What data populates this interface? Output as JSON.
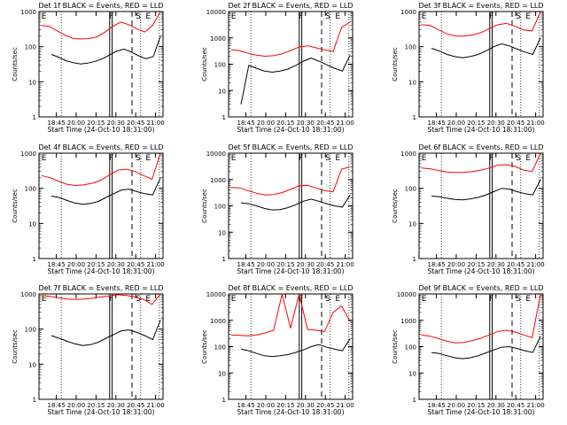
{
  "chart_data": {
    "type": "line",
    "layout": "3x3 grid",
    "shared_xlabel": "Start Time (24-Oct-10 18:31:00)",
    "ylabel": "Counts/sec",
    "x_tick_labels": [
      "18:45",
      "20:00",
      "20:15",
      "20:30",
      "20:45",
      "21:00"
    ],
    "y_tick_labels": [
      "1",
      "10",
      "100",
      "1000"
    ],
    "y_tick_labels_alt": [
      "1",
      "10",
      "100",
      "1000",
      "10000"
    ],
    "y_scale": "log",
    "markers": [
      "E",
      "F",
      "S",
      "E"
    ],
    "colors": {
      "events": "#000000",
      "lld": "#ff0000"
    },
    "panels": [
      {
        "title": "Det 1f BLACK = Events, RED = LLD",
        "ylim": [
          1,
          1000
        ],
        "series": [
          {
            "name": "Events",
            "values": [
              60,
              50,
              40,
              35,
              32,
              34,
              38,
              45,
              58,
              75,
              85,
              70,
              55,
              45,
              52,
              200
            ]
          },
          {
            "name": "LLD",
            "values": [
              400,
              380,
              280,
              210,
              170,
              165,
              170,
              190,
              260,
              380,
              500,
              420,
              320,
              260,
              400,
              1000
            ]
          }
        ]
      },
      {
        "title": "Det 2f BLACK = Events, RED = LLD",
        "ylim": [
          1,
          10000
        ],
        "series": [
          {
            "name": "Events",
            "values": [
              3,
              90,
              70,
              55,
              50,
              55,
              65,
              90,
              130,
              170,
              130,
              95,
              70,
              55,
              220
            ]
          },
          {
            "name": "LLD",
            "values": [
              350,
              330,
              260,
              220,
              200,
              210,
              250,
              330,
              450,
              500,
              420,
              350,
              300,
              2500,
              4000
            ]
          }
        ]
      },
      {
        "title": "Det 3f BLACK = Events, RED = LLD",
        "ylim": [
          1,
          1000
        ],
        "series": [
          {
            "name": "Events",
            "values": [
              90,
              75,
              60,
              52,
              48,
              52,
              60,
              75,
              100,
              120,
              105,
              85,
              70,
              60,
              180
            ]
          },
          {
            "name": "LLD",
            "values": [
              420,
              400,
              300,
              230,
              200,
              200,
              215,
              250,
              330,
              420,
              460,
              380,
              300,
              280,
              1000
            ]
          }
        ]
      },
      {
        "title": "Det 4f BLACK = Events, RED = LLD",
        "ylim": [
          1,
          1000
        ],
        "series": [
          {
            "name": "Events",
            "values": [
              60,
              55,
              45,
              38,
              35,
              37,
              42,
              55,
              70,
              90,
              95,
              80,
              70,
              65,
              200
            ]
          },
          {
            "name": "LLD",
            "values": [
              230,
              200,
              160,
              130,
              120,
              125,
              140,
              170,
              240,
              330,
              350,
              300,
              230,
              180,
              1000
            ]
          }
        ]
      },
      {
        "title": "Det 5f BLACK = Events, RED = LLD",
        "ylim": [
          1,
          10000
        ],
        "series": [
          {
            "name": "Events",
            "values": [
              130,
              120,
              100,
              80,
              70,
              72,
              85,
              110,
              150,
              180,
              150,
              120,
              100,
              90,
              260
            ]
          },
          {
            "name": "LLD",
            "values": [
              500,
              480,
              380,
              300,
              260,
              270,
              320,
              420,
              580,
              600,
              480,
              380,
              340,
              2500,
              3000
            ]
          }
        ]
      },
      {
        "title": "Det 6f BLACK = Events, RED = LLD",
        "ylim": [
          1,
          1000
        ],
        "series": [
          {
            "name": "Events",
            "values": [
              60,
              58,
              52,
              48,
              47,
              50,
              55,
              65,
              80,
              100,
              95,
              80,
              70,
              65,
              180
            ]
          },
          {
            "name": "LLD",
            "values": [
              380,
              360,
              320,
              290,
              280,
              285,
              300,
              330,
              380,
              460,
              470,
              420,
              330,
              300,
              1000
            ]
          }
        ]
      },
      {
        "title": "Det 7f BLACK = Events, RED = LLD",
        "ylim": [
          1,
          1000
        ],
        "series": [
          {
            "name": "Events",
            "values": [
              65,
              55,
              45,
              38,
              34,
              36,
              42,
              55,
              70,
              90,
              95,
              80,
              65,
              50,
              180
            ]
          },
          {
            "name": "LLD",
            "values": [
              900,
              850,
              780,
              720,
              700,
              720,
              760,
              820,
              880,
              950,
              900,
              820,
              700,
              500,
              1000
            ]
          }
        ]
      },
      {
        "title": "Det 8f BLACK = Events, RED = LLD",
        "ylim": [
          1,
          10000
        ],
        "series": [
          {
            "name": "Events",
            "values": [
              80,
              70,
              55,
              45,
              42,
              45,
              50,
              60,
              75,
              100,
              120,
              95,
              80,
              70,
              200
            ]
          },
          {
            "name": "LLD",
            "values": [
              280,
              270,
              260,
              280,
              330,
              420,
              10000,
              500,
              10000,
              450,
              420,
              380,
              2000,
              3500,
              900
            ]
          }
        ]
      },
      {
        "title": "Det 9f BLACK = Events, RED = LLD",
        "ylim": [
          1,
          10000
        ],
        "series": [
          {
            "name": "Events",
            "values": [
              60,
              55,
              45,
              38,
              35,
              38,
              45,
              58,
              75,
              95,
              100,
              85,
              70,
              60,
              250
            ]
          },
          {
            "name": "LLD",
            "values": [
              280,
              250,
              200,
              160,
              140,
              145,
              170,
              210,
              280,
              380,
              420,
              360,
              280,
              220,
              10000
            ]
          }
        ]
      }
    ]
  }
}
